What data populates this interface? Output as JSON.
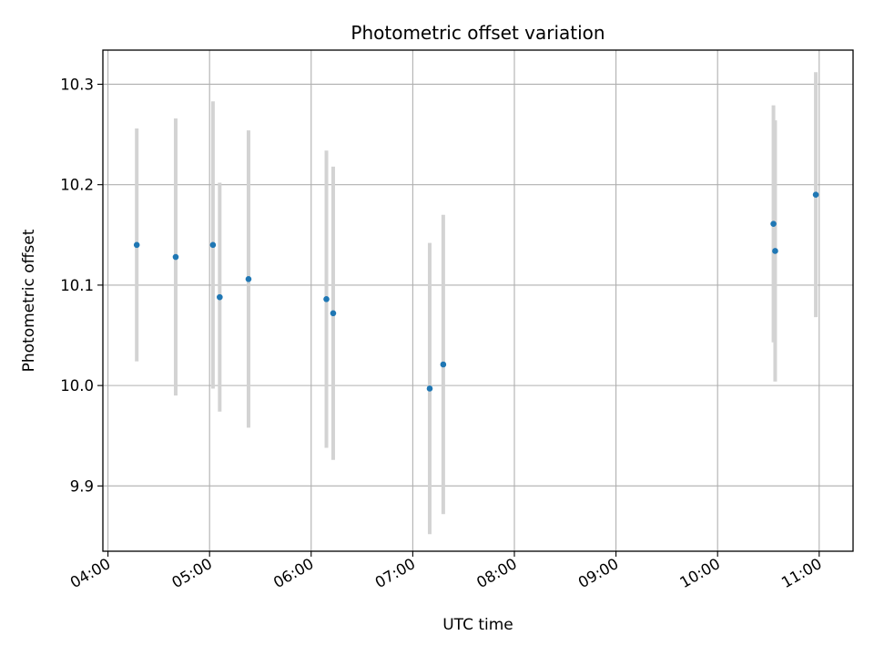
{
  "chart_data": {
    "type": "scatter",
    "title": "Photometric offset variation",
    "xlabel": "UTC time",
    "ylabel": "Photometric offset",
    "x_ticks": [
      "04:00",
      "05:00",
      "06:00",
      "07:00",
      "08:00",
      "09:00",
      "10:00",
      "11:00"
    ],
    "y_ticks": [
      "9.9",
      "10.0",
      "10.1",
      "10.2",
      "10.3"
    ],
    "xlim": [
      "03:57",
      "11:20"
    ],
    "ylim": [
      9.835,
      10.334
    ],
    "grid": true,
    "points": [
      {
        "x": "04:17",
        "y": 10.14,
        "err": 0.116
      },
      {
        "x": "04:40",
        "y": 10.128,
        "err": 0.138
      },
      {
        "x": "05:02",
        "y": 10.14,
        "err": 0.143
      },
      {
        "x": "05:06",
        "y": 10.088,
        "err": 0.114
      },
      {
        "x": "05:23",
        "y": 10.106,
        "err": 0.148
      },
      {
        "x": "06:09",
        "y": 10.086,
        "err": 0.148
      },
      {
        "x": "06:13",
        "y": 10.072,
        "err": 0.146
      },
      {
        "x": "07:10",
        "y": 9.997,
        "err": 0.145
      },
      {
        "x": "07:18",
        "y": 10.021,
        "err": 0.149
      },
      {
        "x": "10:33",
        "y": 10.161,
        "err": 0.118
      },
      {
        "x": "10:34",
        "y": 10.134,
        "err": 0.13
      },
      {
        "x": "10:58",
        "y": 10.19,
        "err": 0.122
      }
    ],
    "colors": {
      "point": "#1f77b4",
      "errorbar": "#d3d3d3",
      "grid": "#b0b0b0"
    }
  }
}
